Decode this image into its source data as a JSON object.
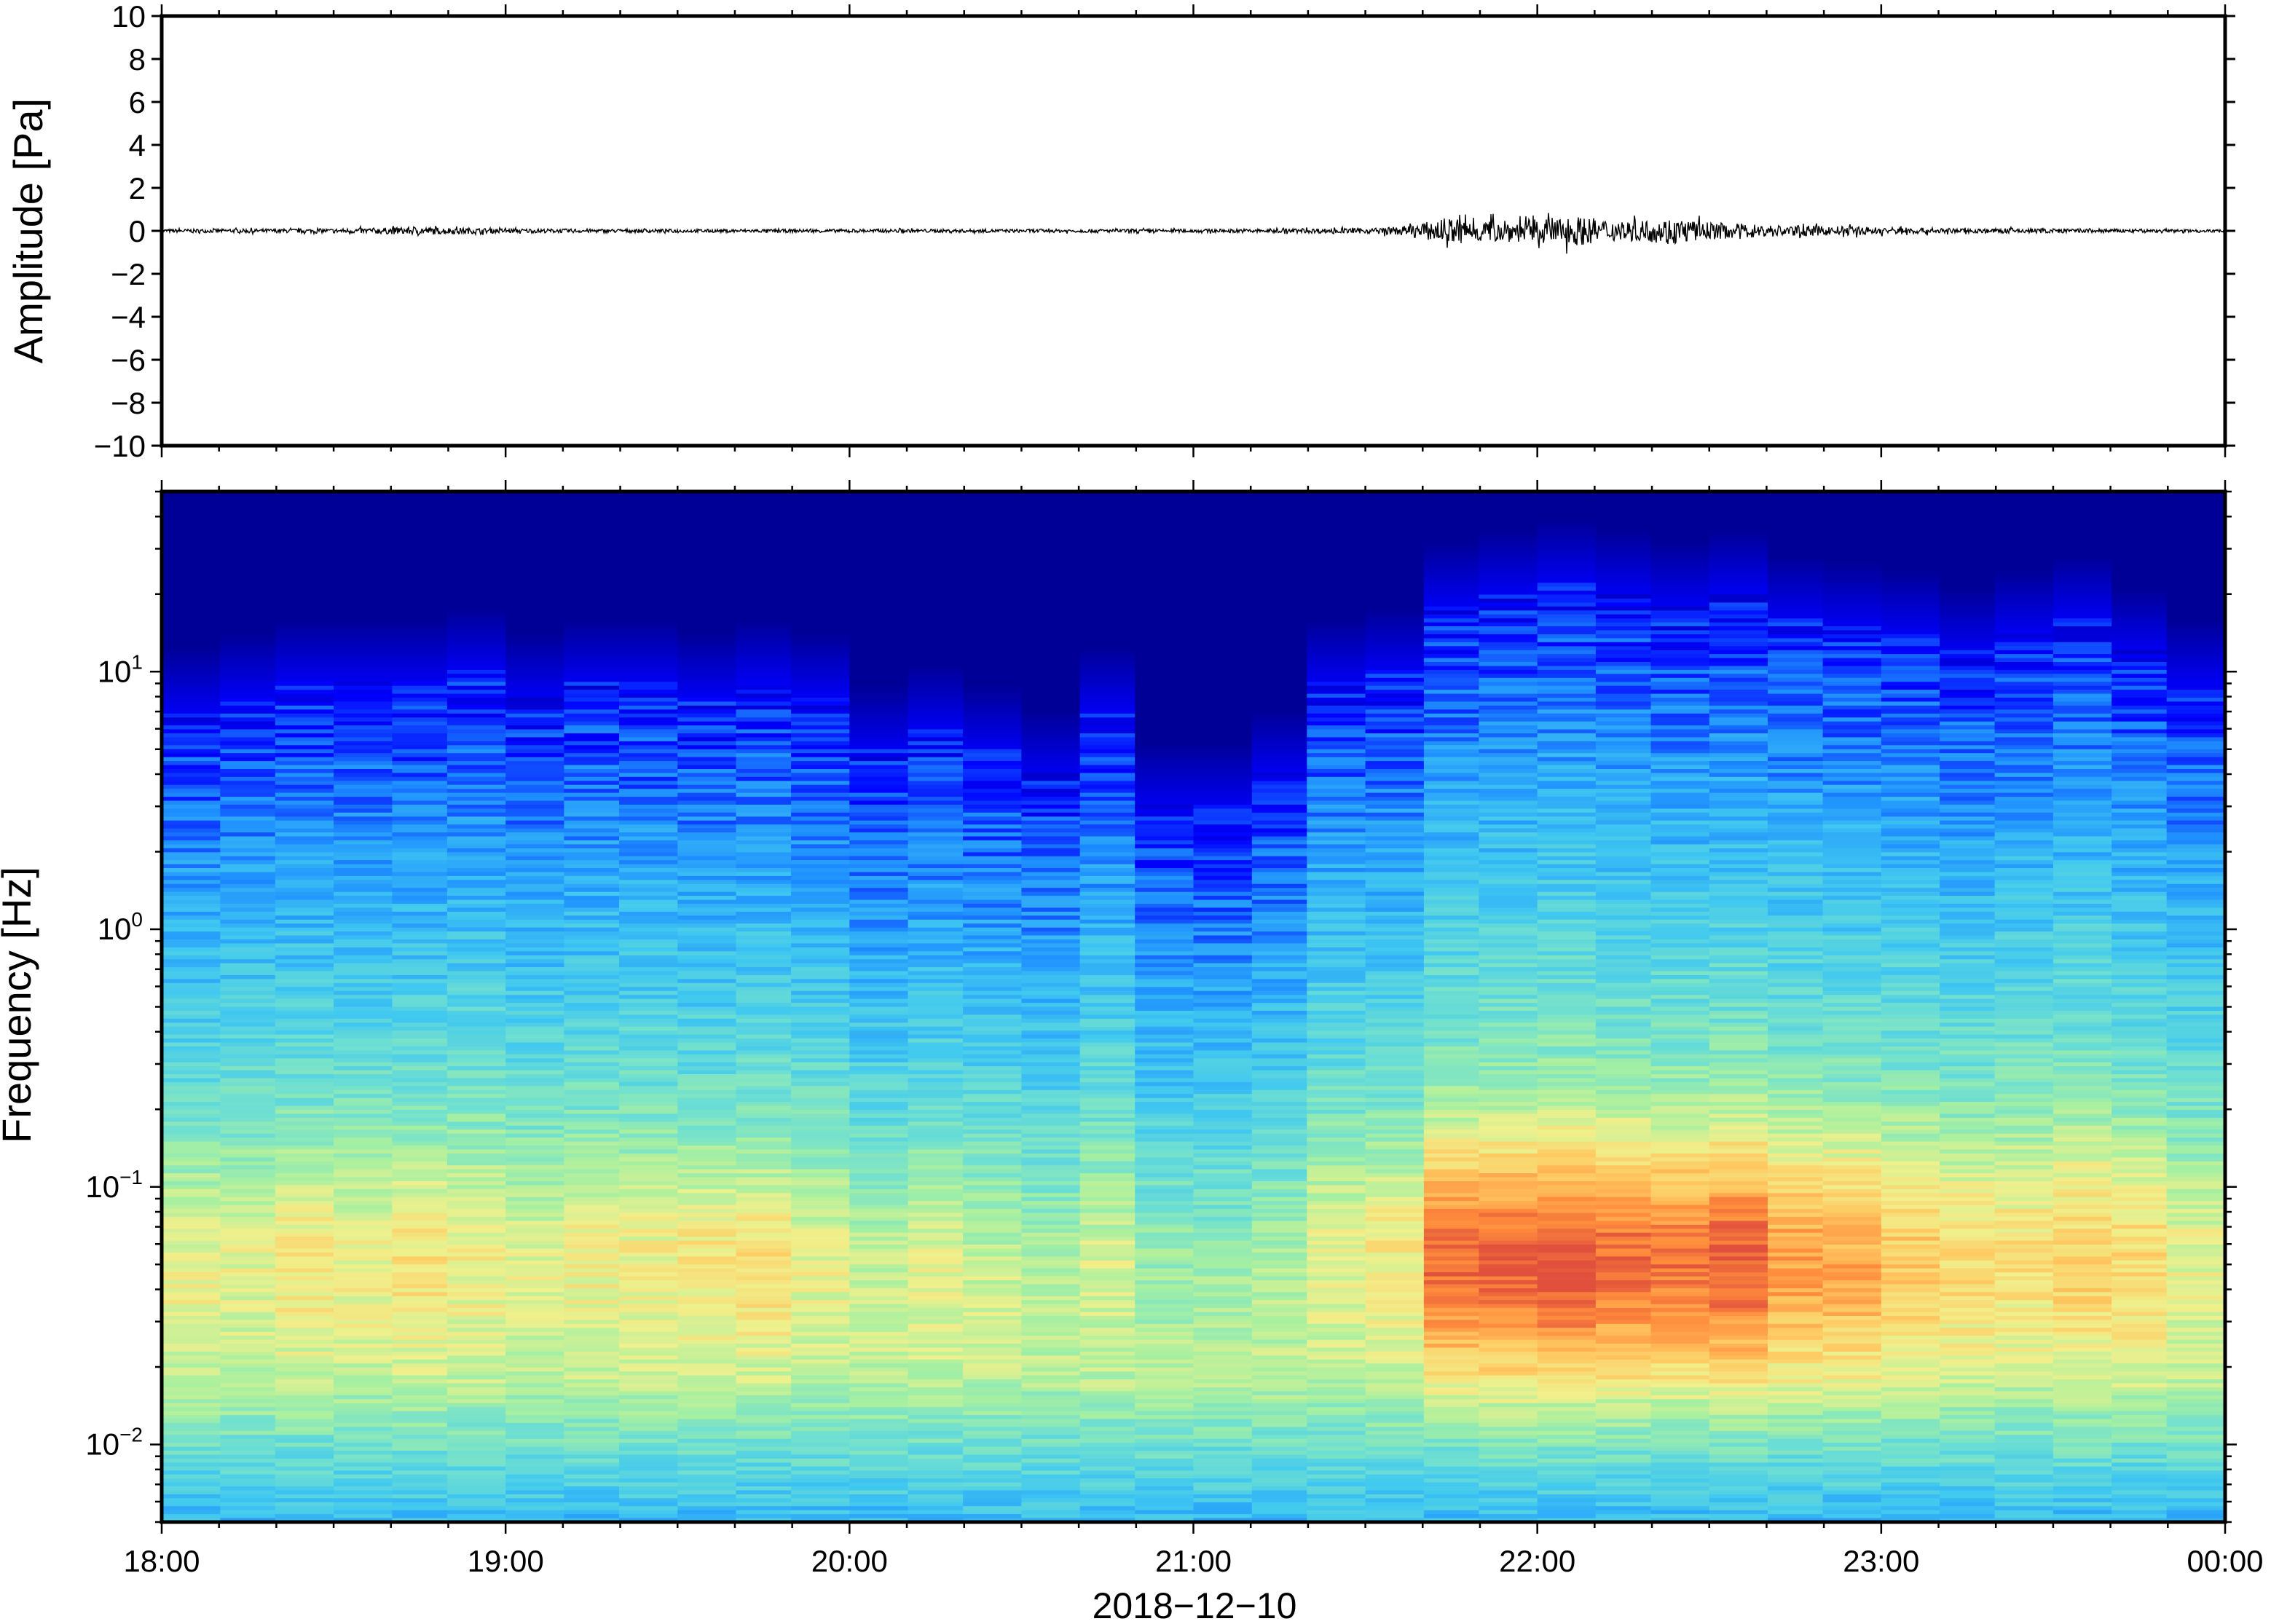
{
  "chart_data": [
    {
      "type": "line",
      "ylabel": "Amplitude [Pa]",
      "ylim": [
        -10,
        10
      ],
      "yticks": [
        "10",
        "8",
        "6",
        "4",
        "2",
        "0",
        "−2",
        "−4",
        "−6",
        "−8",
        "−10"
      ],
      "ytick_values": [
        10,
        8,
        6,
        4,
        2,
        0,
        -2,
        -4,
        -6,
        -8,
        -10
      ],
      "xlim": [
        "18:00",
        "00:00"
      ],
      "series": [
        {
          "description_of_envelope_hours": [
            18.0,
            18.5,
            18.75,
            19.0,
            19.5,
            20.0,
            20.5,
            21.0,
            21.5,
            21.6,
            21.75,
            21.9,
            22.0,
            22.1,
            22.25,
            22.4,
            22.5,
            22.75,
            23.0,
            23.25,
            23.4,
            23.6,
            24.0
          ],
          "envelope_pa": [
            0.08,
            0.1,
            0.18,
            0.1,
            0.08,
            0.08,
            0.08,
            0.08,
            0.12,
            0.2,
            0.6,
            0.5,
            0.55,
            0.7,
            0.45,
            0.6,
            0.4,
            0.25,
            0.18,
            0.1,
            0.12,
            0.1,
            0.06
          ]
        }
      ]
    },
    {
      "type": "heatmap",
      "ylabel": "Frequency [Hz]",
      "xlabel": "2018−12−10",
      "yscale": "log",
      "ylim": [
        0.005,
        50
      ],
      "yticks": [
        {
          "base": "10",
          "exp": "1",
          "value": 10
        },
        {
          "base": "10",
          "exp": "0",
          "value": 1
        },
        {
          "base": "10",
          "exp": "−1",
          "value": 0.1
        },
        {
          "base": "10",
          "exp": "−2",
          "value": 0.01
        }
      ],
      "xticks": [
        "18:00",
        "19:00",
        "20:00",
        "21:00",
        "22:00",
        "23:00",
        "00:00"
      ],
      "xtick_hours": [
        18,
        19,
        20,
        21,
        22,
        23,
        24
      ],
      "colormap": [
        "#00007f",
        "#0000ff",
        "#1e90ff",
        "#40c8f0",
        "#70e0d0",
        "#a8f0a0",
        "#f0f08c",
        "#ffc860",
        "#ff8c3c",
        "#e0503c"
      ],
      "segments_hours": [
        18.0,
        18.17,
        18.33,
        18.5,
        18.67,
        18.83,
        19.0,
        19.17,
        19.33,
        19.5,
        19.67,
        19.83,
        20.0,
        20.17,
        20.33,
        20.5,
        20.67,
        20.83,
        21.0,
        21.17,
        21.33,
        21.5,
        21.67,
        21.83,
        22.0,
        22.17,
        22.33,
        22.5,
        22.67,
        22.83,
        23.0,
        23.17,
        23.33,
        23.5,
        23.67,
        23.83
      ],
      "top_energy_freq_hz": [
        7,
        8,
        9,
        9,
        9,
        10,
        8,
        9,
        9,
        8,
        9,
        8,
        5,
        6,
        5,
        4,
        7,
        3,
        3,
        4,
        9,
        10,
        18,
        20,
        22,
        20,
        18,
        20,
        16,
        15,
        14,
        12,
        14,
        16,
        12,
        9
      ],
      "peak_level_low_band": [
        0.62,
        0.6,
        0.65,
        0.62,
        0.66,
        0.62,
        0.6,
        0.62,
        0.62,
        0.65,
        0.66,
        0.6,
        0.58,
        0.6,
        0.58,
        0.56,
        0.58,
        0.55,
        0.55,
        0.56,
        0.6,
        0.64,
        0.9,
        0.92,
        0.95,
        0.9,
        0.88,
        0.92,
        0.8,
        0.78,
        0.72,
        0.68,
        0.66,
        0.7,
        0.68,
        0.6
      ]
    }
  ]
}
